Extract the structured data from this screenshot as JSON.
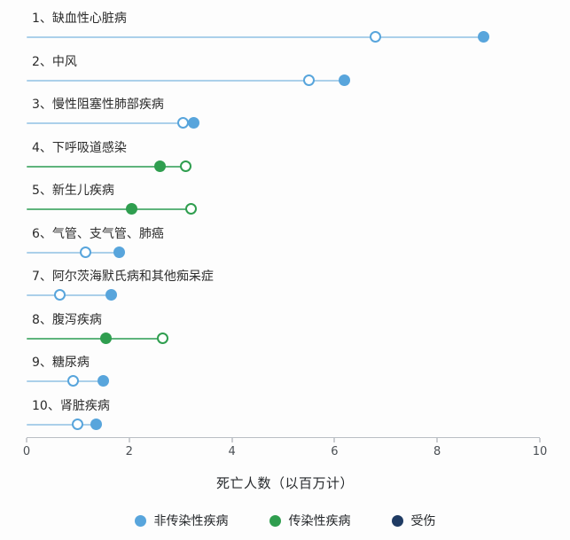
{
  "chart_data": {
    "type": "dumbbell",
    "title": "",
    "xlabel": "死亡人数（以百万计）",
    "xlim": [
      0,
      10
    ],
    "xticks": [
      "0",
      "2",
      "4",
      "6",
      "8",
      "10"
    ],
    "legend": [
      {
        "label": "非传染性疾病",
        "color": "#58a5dc",
        "stem_color": "#abd0ea"
      },
      {
        "label": "传染性疾病",
        "color": "#2f9e4f",
        "stem_color": "#5fb47c"
      },
      {
        "label": "受伤",
        "color": "#1f3b63",
        "stem_color": "#1f3b63"
      }
    ],
    "marker_note": {
      "open_circle": "ring marker",
      "filled_circle": "solid marker"
    },
    "rows": [
      {
        "label": "1、缺血性心脏病",
        "legend_index": 0,
        "open": 6.8,
        "filled": 8.9
      },
      {
        "label": "2、中风",
        "legend_index": 0,
        "open": 5.5,
        "filled": 6.2
      },
      {
        "label": "3、慢性阻塞性肺部疾病",
        "legend_index": 0,
        "open": 3.05,
        "filled": 3.25
      },
      {
        "label": "4、下呼吸道感染",
        "legend_index": 1,
        "open": 3.1,
        "filled": 2.6
      },
      {
        "label": "5、新生儿疾病",
        "legend_index": 1,
        "open": 3.2,
        "filled": 2.05
      },
      {
        "label": "6、气管、支气管、肺癌",
        "legend_index": 0,
        "open": 1.15,
        "filled": 1.8
      },
      {
        "label": "7、阿尔茨海默氏病和其他痴呆症",
        "legend_index": 0,
        "open": 0.65,
        "filled": 1.65
      },
      {
        "label": "8、腹泻疾病",
        "legend_index": 1,
        "open": 2.65,
        "filled": 1.55
      },
      {
        "label": "9、糖尿病",
        "legend_index": 0,
        "open": 0.9,
        "filled": 1.5
      },
      {
        "label": "10、肾脏疾病",
        "legend_index": 0,
        "open": 1.0,
        "filled": 1.35
      }
    ]
  }
}
